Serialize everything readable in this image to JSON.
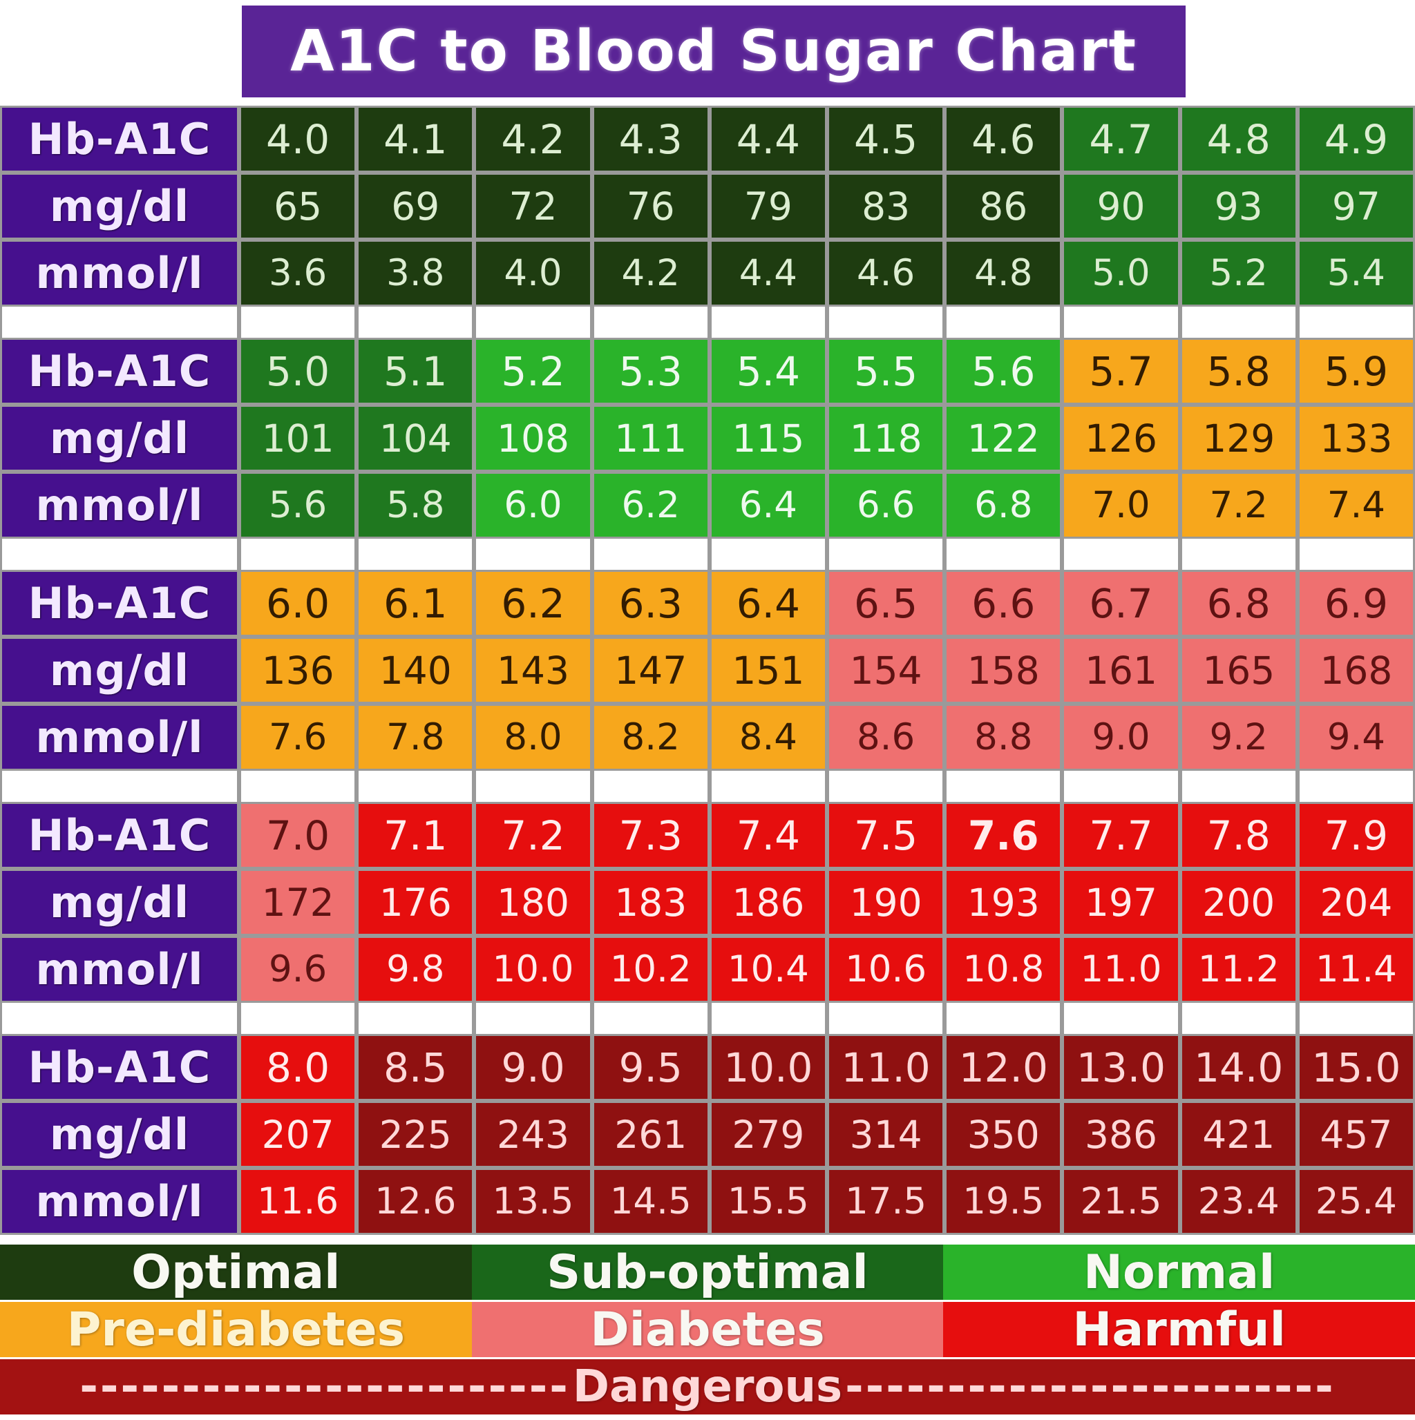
{
  "chart_data": {
    "type": "table",
    "title": "A1C to Blood Sugar Chart",
    "row_labels": [
      "Hb-A1C",
      "mg/dl",
      "mmol/l"
    ],
    "blocks": [
      {
        "a1c": [
          "4.0",
          "4.1",
          "4.2",
          "4.3",
          "4.4",
          "4.5",
          "4.6",
          "4.7",
          "4.8",
          "4.9"
        ],
        "mgdl": [
          "65",
          "69",
          "72",
          "76",
          "79",
          "83",
          "86",
          "90",
          "93",
          "97"
        ],
        "mmol": [
          "3.6",
          "3.8",
          "4.0",
          "4.2",
          "4.4",
          "4.6",
          "4.8",
          "5.0",
          "5.2",
          "5.4"
        ],
        "classes": [
          "optimal",
          "optimal",
          "optimal",
          "optimal",
          "optimal",
          "optimal",
          "optimal",
          "suboptimal",
          "suboptimal",
          "suboptimal"
        ]
      },
      {
        "a1c": [
          "5.0",
          "5.1",
          "5.2",
          "5.3",
          "5.4",
          "5.5",
          "5.6",
          "5.7",
          "5.8",
          "5.9"
        ],
        "mgdl": [
          "101",
          "104",
          "108",
          "111",
          "115",
          "118",
          "122",
          "126",
          "129",
          "133"
        ],
        "mmol": [
          "5.6",
          "5.8",
          "6.0",
          "6.2",
          "6.4",
          "6.6",
          "6.8",
          "7.0",
          "7.2",
          "7.4"
        ],
        "classes": [
          "suboptimal",
          "suboptimal",
          "normal",
          "normal",
          "normal",
          "normal",
          "normal",
          "prediabetes",
          "prediabetes",
          "prediabetes"
        ]
      },
      {
        "a1c": [
          "6.0",
          "6.1",
          "6.2",
          "6.3",
          "6.4",
          "6.5",
          "6.6",
          "6.7",
          "6.8",
          "6.9"
        ],
        "mgdl": [
          "136",
          "140",
          "143",
          "147",
          "151",
          "154",
          "158",
          "161",
          "165",
          "168"
        ],
        "mmol": [
          "7.6",
          "7.8",
          "8.0",
          "8.2",
          "8.4",
          "8.6",
          "8.8",
          "9.0",
          "9.2",
          "9.4"
        ],
        "classes": [
          "prediabetes",
          "prediabetes",
          "prediabetes",
          "prediabetes",
          "prediabetes",
          "diabetes",
          "diabetes",
          "diabetes",
          "diabetes",
          "diabetes"
        ]
      },
      {
        "a1c": [
          "7.0",
          "7.1",
          "7.2",
          "7.3",
          "7.4",
          "7.5",
          "7.6",
          "7.7",
          "7.8",
          "7.9"
        ],
        "mgdl": [
          "172",
          "176",
          "180",
          "183",
          "186",
          "190",
          "193",
          "197",
          "200",
          "204"
        ],
        "mmol": [
          "9.6",
          "9.8",
          "10.0",
          "10.2",
          "10.4",
          "10.6",
          "10.8",
          "11.0",
          "11.2",
          "11.4"
        ],
        "classes": [
          "diabetes",
          "harmful",
          "harmful",
          "harmful",
          "harmful",
          "harmful",
          "harmful",
          "harmful",
          "harmful",
          "harmful"
        ],
        "bold_a1c_index": 6
      },
      {
        "a1c": [
          "8.0",
          "8.5",
          "9.0",
          "9.5",
          "10.0",
          "11.0",
          "12.0",
          "13.0",
          "14.0",
          "15.0"
        ],
        "mgdl": [
          "207",
          "225",
          "243",
          "261",
          "279",
          "314",
          "350",
          "386",
          "421",
          "457"
        ],
        "mmol": [
          "11.6",
          "12.6",
          "13.5",
          "14.5",
          "15.5",
          "17.5",
          "19.5",
          "21.5",
          "23.4",
          "25.4"
        ],
        "classes": [
          "harmful",
          "dangerous",
          "dangerous",
          "dangerous",
          "dangerous",
          "dangerous",
          "dangerous",
          "dangerous",
          "dangerous",
          "dangerous"
        ]
      }
    ]
  },
  "legend": {
    "rows": [
      [
        {
          "label": "Optimal",
          "class": "optimal"
        },
        {
          "label": "Sub-optimal",
          "class": "suboptimal"
        },
        {
          "label": "Normal",
          "class": "normal"
        }
      ],
      [
        {
          "label": "Pre-diabetes",
          "class": "prediabetes"
        },
        {
          "label": "Diabetes",
          "class": "diabetes"
        },
        {
          "label": "Harmful",
          "class": "harmful"
        }
      ]
    ],
    "danger": {
      "label": "Dangerous",
      "dashes_left": "------------------------",
      "dashes_right": "------------------------"
    }
  },
  "colors": {
    "title-bg": "#5a2496",
    "title-text": "#ffffff",
    "label-bg": "#46108e",
    "label-text": "#f3e9ff",
    "grid": "#9a9a9a",
    "optimal": "#1e3c10",
    "suboptimal": "#1f781f",
    "suboptimal-legend": "#1a671a",
    "normal": "#2ab32a",
    "prediabetes": "#f7a71c",
    "diabetes": "#ef7070",
    "harmful": "#e60e0e",
    "dangerous": "#8f1111",
    "dangerous-legend": "#a31212",
    "legend-text": "#f8f8f2",
    "text-palegreen": "#ddeed2",
    "text-nearwhite": "#eef9ee",
    "text-darkbrown": "#321c02",
    "text-maroon": "#5e1212",
    "text-pinkwhite": "#ffecec",
    "text-pinkwhite2": "#ffd8d8",
    "text-cream": "#fdf3d0"
  }
}
